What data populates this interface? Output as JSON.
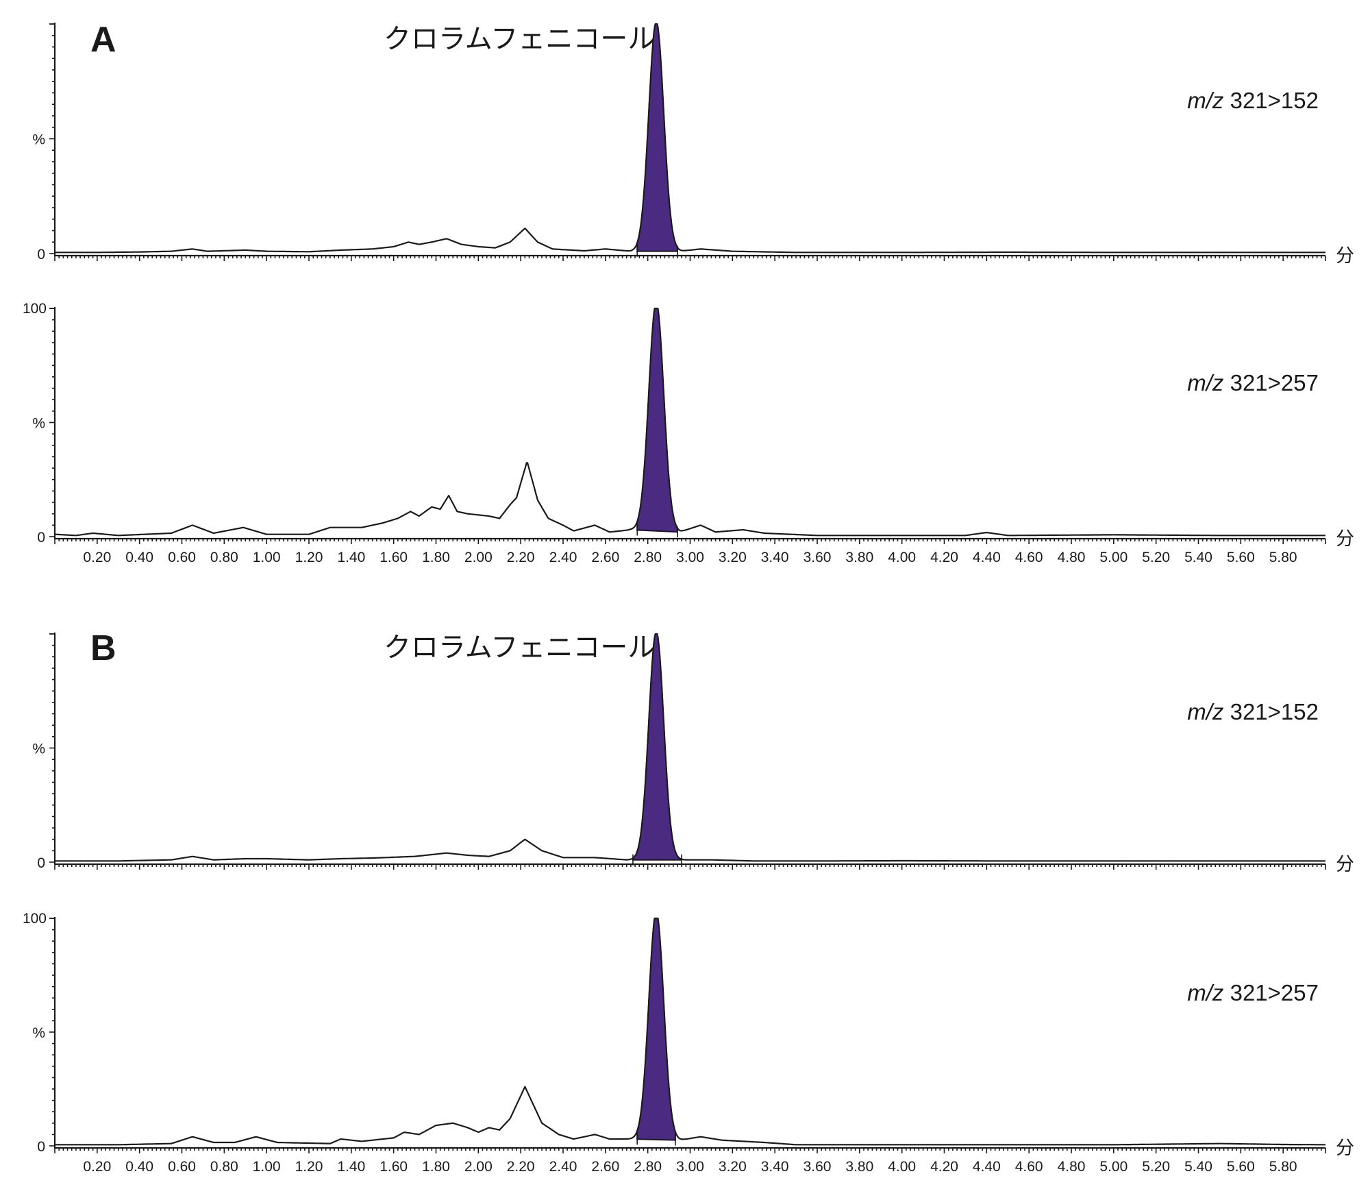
{
  "chart_data": {
    "type": "line",
    "x_unit_label": "分",
    "x_ticks": [
      "0.20",
      "0.40",
      "0.60",
      "0.80",
      "1.00",
      "1.20",
      "1.40",
      "1.60",
      "1.80",
      "2.00",
      "2.20",
      "2.40",
      "2.60",
      "2.80",
      "3.00",
      "3.20",
      "3.40",
      "3.60",
      "3.80",
      "4.00",
      "4.20",
      "4.40",
      "4.60",
      "4.80",
      "5.00",
      "5.20",
      "5.40",
      "5.60",
      "5.80"
    ],
    "xlim": [
      0.0,
      6.0
    ],
    "ylim": [
      0,
      100
    ],
    "peak_fill_color": "#4b2a82",
    "panels": [
      {
        "letter": "A",
        "compound": "クロラムフェニコール",
        "traces": [
          {
            "mz_prefix": "m/z",
            "transition": "321>152",
            "y_labels": {
              "top": "",
              "mid": "%",
              "zero": "0"
            },
            "peak": {
              "rt": 2.84,
              "height": 100,
              "width_sd": 0.035,
              "integration": [
                2.75,
                2.94
              ]
            },
            "points": [
              [
                0.0,
                0.5
              ],
              [
                0.2,
                0.5
              ],
              [
                0.4,
                0.7
              ],
              [
                0.55,
                1.0
              ],
              [
                0.65,
                2.0
              ],
              [
                0.72,
                1.0
              ],
              [
                0.9,
                1.5
              ],
              [
                1.0,
                1.0
              ],
              [
                1.2,
                0.8
              ],
              [
                1.35,
                1.5
              ],
              [
                1.5,
                2.0
              ],
              [
                1.6,
                3.0
              ],
              [
                1.67,
                5.0
              ],
              [
                1.72,
                4.0
              ],
              [
                1.78,
                5.0
              ],
              [
                1.85,
                6.5
              ],
              [
                1.92,
                4.0
              ],
              [
                2.0,
                3.0
              ],
              [
                2.08,
                2.5
              ],
              [
                2.15,
                5.0
              ],
              [
                2.22,
                11.0
              ],
              [
                2.28,
                5.0
              ],
              [
                2.35,
                2.0
              ],
              [
                2.5,
                1.2
              ],
              [
                2.6,
                2.0
              ],
              [
                2.72,
                1.0
              ],
              [
                2.95,
                1.0
              ],
              [
                3.05,
                2.0
              ],
              [
                3.2,
                1.0
              ],
              [
                3.5,
                0.5
              ],
              [
                4.0,
                0.5
              ],
              [
                4.5,
                0.6
              ],
              [
                5.0,
                0.5
              ],
              [
                5.5,
                0.5
              ],
              [
                6.0,
                0.5
              ]
            ]
          },
          {
            "mz_prefix": "m/z",
            "transition": "321>257",
            "y_labels": {
              "top": "100",
              "mid": "%",
              "zero": "0"
            },
            "peak": {
              "rt": 2.84,
              "height": 100,
              "width_sd": 0.035,
              "integration": [
                2.75,
                2.94
              ]
            },
            "points": [
              [
                0.0,
                1.0
              ],
              [
                0.1,
                0.5
              ],
              [
                0.18,
                1.5
              ],
              [
                0.3,
                0.5
              ],
              [
                0.55,
                1.5
              ],
              [
                0.65,
                5.0
              ],
              [
                0.75,
                1.5
              ],
              [
                0.89,
                4.0
              ],
              [
                1.0,
                1.0
              ],
              [
                1.2,
                1.0
              ],
              [
                1.3,
                4.0
              ],
              [
                1.45,
                4.0
              ],
              [
                1.55,
                6.0
              ],
              [
                1.62,
                8.0
              ],
              [
                1.68,
                11.0
              ],
              [
                1.72,
                9.0
              ],
              [
                1.78,
                13.0
              ],
              [
                1.82,
                12.0
              ],
              [
                1.86,
                18.0
              ],
              [
                1.9,
                11.0
              ],
              [
                1.95,
                10.0
              ],
              [
                2.05,
                9.0
              ],
              [
                2.1,
                8.0
              ],
              [
                2.15,
                14.0
              ],
              [
                2.18,
                17.0
              ],
              [
                2.23,
                33.0
              ],
              [
                2.28,
                16.0
              ],
              [
                2.33,
                8.0
              ],
              [
                2.4,
                5.0
              ],
              [
                2.45,
                2.5
              ],
              [
                2.55,
                5.0
              ],
              [
                2.62,
                2.0
              ],
              [
                2.72,
                3.0
              ],
              [
                2.95,
                2.0
              ],
              [
                3.05,
                5.0
              ],
              [
                3.12,
                2.0
              ],
              [
                3.25,
                3.0
              ],
              [
                3.35,
                1.5
              ],
              [
                3.6,
                0.5
              ],
              [
                4.0,
                0.5
              ],
              [
                4.3,
                0.5
              ],
              [
                4.4,
                1.8
              ],
              [
                4.5,
                0.5
              ],
              [
                5.0,
                0.8
              ],
              [
                5.5,
                0.5
              ],
              [
                6.0,
                0.5
              ]
            ]
          }
        ]
      },
      {
        "letter": "B",
        "compound": "クロラムフェニコール",
        "traces": [
          {
            "mz_prefix": "m/z",
            "transition": "321>152",
            "y_labels": {
              "top": "",
              "mid": "%",
              "zero": "0"
            },
            "peak": {
              "rt": 2.84,
              "height": 100,
              "width_sd": 0.035,
              "integration": [
                2.73,
                2.96
              ]
            },
            "points": [
              [
                0.0,
                0.5
              ],
              [
                0.3,
                0.5
              ],
              [
                0.55,
                1.0
              ],
              [
                0.65,
                2.5
              ],
              [
                0.75,
                1.0
              ],
              [
                0.9,
                1.5
              ],
              [
                1.0,
                1.5
              ],
              [
                1.2,
                1.0
              ],
              [
                1.35,
                1.5
              ],
              [
                1.5,
                1.8
              ],
              [
                1.7,
                2.5
              ],
              [
                1.85,
                4.0
              ],
              [
                1.95,
                3.0
              ],
              [
                2.05,
                2.5
              ],
              [
                2.15,
                5.0
              ],
              [
                2.22,
                10.0
              ],
              [
                2.3,
                5.0
              ],
              [
                2.4,
                2.0
              ],
              [
                2.55,
                2.0
              ],
              [
                2.7,
                1.0
              ],
              [
                2.97,
                1.0
              ],
              [
                3.1,
                1.0
              ],
              [
                3.3,
                0.5
              ],
              [
                3.6,
                0.5
              ],
              [
                4.0,
                0.6
              ],
              [
                4.5,
                0.5
              ],
              [
                5.0,
                0.5
              ],
              [
                5.5,
                0.5
              ],
              [
                6.0,
                0.5
              ]
            ]
          },
          {
            "mz_prefix": "m/z",
            "transition": "321>257",
            "y_labels": {
              "top": "100",
              "mid": "%",
              "zero": "0"
            },
            "peak": {
              "rt": 2.84,
              "height": 100,
              "width_sd": 0.035,
              "integration": [
                2.75,
                2.93
              ]
            },
            "points": [
              [
                0.0,
                0.5
              ],
              [
                0.3,
                0.5
              ],
              [
                0.55,
                1.0
              ],
              [
                0.65,
                4.0
              ],
              [
                0.75,
                1.5
              ],
              [
                0.85,
                1.5
              ],
              [
                0.95,
                4.0
              ],
              [
                1.05,
                1.5
              ],
              [
                1.3,
                1.0
              ],
              [
                1.35,
                3.0
              ],
              [
                1.45,
                2.0
              ],
              [
                1.6,
                3.5
              ],
              [
                1.65,
                6.0
              ],
              [
                1.72,
                5.0
              ],
              [
                1.8,
                9.0
              ],
              [
                1.88,
                10.0
              ],
              [
                1.95,
                8.0
              ],
              [
                2.0,
                6.0
              ],
              [
                2.05,
                8.0
              ],
              [
                2.1,
                7.0
              ],
              [
                2.15,
                12.0
              ],
              [
                2.22,
                26.0
              ],
              [
                2.3,
                10.0
              ],
              [
                2.38,
                5.0
              ],
              [
                2.45,
                3.0
              ],
              [
                2.55,
                5.0
              ],
              [
                2.62,
                3.0
              ],
              [
                2.72,
                3.0
              ],
              [
                2.95,
                2.5
              ],
              [
                3.05,
                4.0
              ],
              [
                3.15,
                2.5
              ],
              [
                3.35,
                1.5
              ],
              [
                3.5,
                0.5
              ],
              [
                4.0,
                0.5
              ],
              [
                4.5,
                0.5
              ],
              [
                5.0,
                0.5
              ],
              [
                5.5,
                1.0
              ],
              [
                5.8,
                0.6
              ],
              [
                6.0,
                0.5
              ]
            ]
          }
        ]
      }
    ]
  }
}
